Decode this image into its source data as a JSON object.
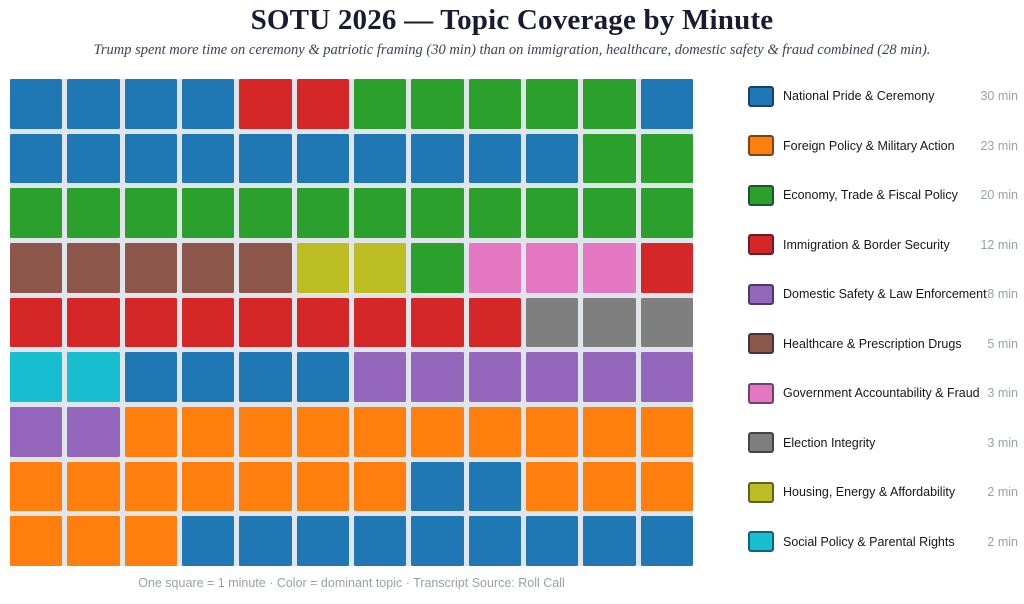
{
  "title": "SOTU 2026 — Topic Coverage by Minute",
  "subtitle": "Trump spent more time on ceremony & patriotic framing (30 min) than on immigration, healthcare, domestic safety & fraud combined (28 min).",
  "footer": "One square = 1 minute  ·  Color = dominant topic  ·  Transcript Source: Roll Call",
  "colors": {
    "title_text": "#1a1b33",
    "subtitle_text": "#3d4254",
    "muted_text": "#9ba1a6",
    "grid_gap": "#dfe5ea"
  },
  "chart_data": {
    "type": "waffle",
    "title": "SOTU 2026 — Topic Coverage by Minute",
    "unit_note": "One square = 1 minute",
    "color_note": "Color = dominant topic",
    "source_note": "Transcript Source: Roll Call",
    "grid": {
      "rows": 9,
      "cols": 12,
      "total_squares": 108
    },
    "legend_position": "right",
    "topics": [
      {
        "key": "B",
        "label": "National Pride & Ceremony",
        "minutes": 30,
        "minutes_label": "30 min",
        "color": "#1f77b4"
      },
      {
        "key": "O",
        "label": "Foreign Policy & Military Action",
        "minutes": 23,
        "minutes_label": "23 min",
        "color": "#ff7f0e"
      },
      {
        "key": "G",
        "label": "Economy, Trade & Fiscal Policy",
        "minutes": 20,
        "minutes_label": "20 min",
        "color": "#2ca02c"
      },
      {
        "key": "R",
        "label": "Immigration & Border Security",
        "minutes": 12,
        "minutes_label": "12 min",
        "color": "#d62728"
      },
      {
        "key": "P",
        "label": "Domestic Safety & Law Enforcement",
        "minutes": 8,
        "minutes_label": "8 min",
        "color": "#9467bd"
      },
      {
        "key": "H",
        "label": "Healthcare & Prescription Drugs",
        "minutes": 5,
        "minutes_label": "5 min",
        "color": "#8c564b"
      },
      {
        "key": "F",
        "label": "Government Accountability & Fraud",
        "minutes": 3,
        "minutes_label": "3 min",
        "color": "#e377c2"
      },
      {
        "key": "E",
        "label": "Election Integrity",
        "minutes": 3,
        "minutes_label": "3 min",
        "color": "#7f7f7f"
      },
      {
        "key": "Y",
        "label": "Housing, Energy & Affordability",
        "minutes": 2,
        "minutes_label": "2 min",
        "color": "#bcbd22"
      },
      {
        "key": "C",
        "label": "Social Policy & Parental Rights",
        "minutes": 2,
        "minutes_label": "2 min",
        "color": "#17becf"
      }
    ],
    "cells_row_major": [
      "B",
      "B",
      "B",
      "B",
      "R",
      "R",
      "G",
      "G",
      "G",
      "G",
      "G",
      "B",
      "B",
      "B",
      "B",
      "B",
      "B",
      "B",
      "B",
      "B",
      "B",
      "B",
      "G",
      "G",
      "G",
      "G",
      "G",
      "G",
      "G",
      "G",
      "G",
      "G",
      "G",
      "G",
      "G",
      "G",
      "H",
      "H",
      "H",
      "H",
      "H",
      "Y",
      "Y",
      "G",
      "F",
      "F",
      "F",
      "R",
      "R",
      "R",
      "R",
      "R",
      "R",
      "R",
      "R",
      "R",
      "R",
      "E",
      "E",
      "E",
      "C",
      "C",
      "B",
      "B",
      "B",
      "B",
      "P",
      "P",
      "P",
      "P",
      "P",
      "P",
      "P",
      "P",
      "O",
      "O",
      "O",
      "O",
      "O",
      "O",
      "O",
      "O",
      "O",
      "O",
      "O",
      "O",
      "O",
      "O",
      "O",
      "O",
      "O",
      "B",
      "B",
      "O",
      "O",
      "O",
      "O",
      "O",
      "O",
      "B",
      "B",
      "B",
      "B",
      "B",
      "B",
      "B",
      "B",
      "B"
    ]
  }
}
